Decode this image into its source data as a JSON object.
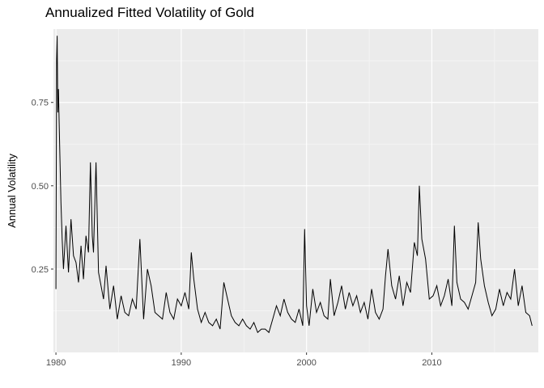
{
  "chart_data": {
    "type": "line",
    "title": "Annualized Fitted Volatility of Gold",
    "xlabel": "",
    "ylabel": "Annual Volatility",
    "xlim": [
      1979.8,
      2018.5
    ],
    "ylim": [
      0.0,
      0.97
    ],
    "x_ticks": [
      1980,
      1990,
      2000,
      2010
    ],
    "x_tick_labels": [
      "1980",
      "1990",
      "2000",
      "2010"
    ],
    "y_ticks": [
      0.25,
      0.5,
      0.75
    ],
    "y_tick_labels": [
      "0.25",
      "0.50",
      "0.75"
    ],
    "grid": true,
    "background": "#ebebeb",
    "line_color": "#000000",
    "series": [
      {
        "x": [
          1980.0,
          1980.05,
          1980.1,
          1980.15,
          1980.2,
          1980.3,
          1980.4,
          1980.5,
          1980.6,
          1980.8,
          1981.0,
          1981.2,
          1981.4,
          1981.6,
          1981.8,
          1982.0,
          1982.2,
          1982.4,
          1982.6,
          1982.75,
          1982.9,
          1983.0,
          1983.2,
          1983.4,
          1983.6,
          1983.8,
          1984.0,
          1984.3,
          1984.6,
          1984.9,
          1985.2,
          1985.5,
          1985.8,
          1986.1,
          1986.4,
          1986.7,
          1987.0,
          1987.3,
          1987.6,
          1987.9,
          1988.2,
          1988.5,
          1988.8,
          1989.1,
          1989.4,
          1989.7,
          1990.0,
          1990.3,
          1990.6,
          1990.8,
          1991.0,
          1991.3,
          1991.6,
          1991.9,
          1992.2,
          1992.5,
          1992.8,
          1993.1,
          1993.4,
          1993.7,
          1994.0,
          1994.3,
          1994.6,
          1994.9,
          1995.2,
          1995.5,
          1995.8,
          1996.1,
          1996.4,
          1996.7,
          1997.0,
          1997.3,
          1997.6,
          1997.9,
          1998.2,
          1998.5,
          1998.8,
          1999.1,
          1999.4,
          1999.7,
          1999.85,
          2000.0,
          2000.2,
          2000.5,
          2000.8,
          2001.1,
          2001.4,
          2001.7,
          2001.9,
          2002.2,
          2002.5,
          2002.8,
          2003.1,
          2003.4,
          2003.7,
          2004.0,
          2004.3,
          2004.6,
          2004.9,
          2005.2,
          2005.5,
          2005.8,
          2006.1,
          2006.3,
          2006.5,
          2006.8,
          2007.1,
          2007.4,
          2007.7,
          2008.0,
          2008.3,
          2008.6,
          2008.85,
          2009.0,
          2009.2,
          2009.5,
          2009.8,
          2010.1,
          2010.4,
          2010.7,
          2011.0,
          2011.3,
          2011.6,
          2011.8,
          2012.0,
          2012.3,
          2012.6,
          2012.9,
          2013.2,
          2013.5,
          2013.7,
          2013.9,
          2014.2,
          2014.5,
          2014.8,
          2015.1,
          2015.4,
          2015.7,
          2016.0,
          2016.3,
          2016.6,
          2016.9,
          2017.2,
          2017.5,
          2017.8,
          2018.0
        ],
        "y": [
          0.19,
          0.88,
          0.95,
          0.72,
          0.79,
          0.62,
          0.45,
          0.34,
          0.25,
          0.38,
          0.24,
          0.4,
          0.29,
          0.27,
          0.21,
          0.32,
          0.22,
          0.35,
          0.3,
          0.57,
          0.35,
          0.3,
          0.57,
          0.24,
          0.2,
          0.16,
          0.26,
          0.13,
          0.2,
          0.1,
          0.17,
          0.12,
          0.11,
          0.16,
          0.13,
          0.34,
          0.1,
          0.25,
          0.2,
          0.12,
          0.11,
          0.1,
          0.18,
          0.12,
          0.1,
          0.16,
          0.14,
          0.18,
          0.13,
          0.3,
          0.22,
          0.13,
          0.09,
          0.12,
          0.09,
          0.08,
          0.1,
          0.07,
          0.21,
          0.16,
          0.11,
          0.09,
          0.08,
          0.1,
          0.08,
          0.07,
          0.09,
          0.06,
          0.07,
          0.07,
          0.06,
          0.1,
          0.14,
          0.11,
          0.16,
          0.12,
          0.1,
          0.09,
          0.13,
          0.08,
          0.37,
          0.14,
          0.08,
          0.19,
          0.12,
          0.15,
          0.11,
          0.1,
          0.22,
          0.11,
          0.15,
          0.2,
          0.13,
          0.18,
          0.14,
          0.17,
          0.12,
          0.15,
          0.1,
          0.19,
          0.12,
          0.1,
          0.13,
          0.23,
          0.31,
          0.2,
          0.16,
          0.23,
          0.14,
          0.21,
          0.18,
          0.33,
          0.29,
          0.5,
          0.34,
          0.28,
          0.16,
          0.17,
          0.2,
          0.14,
          0.17,
          0.22,
          0.14,
          0.38,
          0.21,
          0.16,
          0.15,
          0.13,
          0.17,
          0.21,
          0.39,
          0.28,
          0.2,
          0.15,
          0.11,
          0.13,
          0.19,
          0.14,
          0.18,
          0.16,
          0.25,
          0.14,
          0.2,
          0.12,
          0.11,
          0.08
        ]
      }
    ]
  }
}
